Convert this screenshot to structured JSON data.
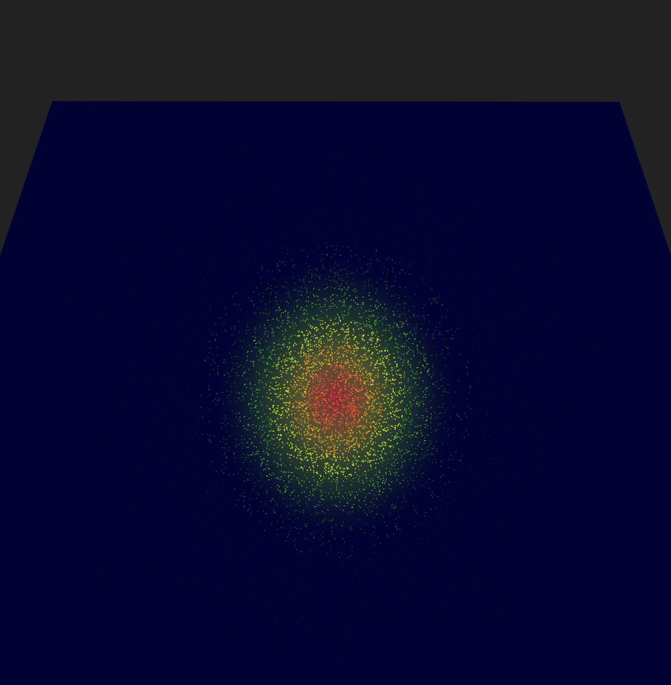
{
  "scene": {
    "background_color": "#222222",
    "plane_color": "#000033",
    "colormap": [
      "#000033",
      "#1a3a10",
      "#3faa1a",
      "#7de81f",
      "#d8ea2a",
      "#f08a2a",
      "#ff4a3a"
    ],
    "distribution": "gaussian-2d",
    "peak_color": "#ff4a3a",
    "mid_color": "#7de81f"
  }
}
